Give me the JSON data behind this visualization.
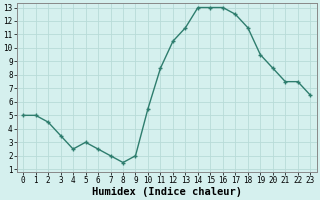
{
  "x": [
    0,
    1,
    2,
    3,
    4,
    5,
    6,
    7,
    8,
    9,
    10,
    11,
    12,
    13,
    14,
    15,
    16,
    17,
    18,
    19,
    20,
    21,
    22,
    23
  ],
  "y": [
    5.0,
    5.0,
    4.5,
    3.5,
    2.5,
    3.0,
    2.5,
    2.0,
    1.5,
    2.0,
    5.5,
    8.5,
    10.5,
    11.5,
    13.0,
    13.0,
    13.0,
    12.5,
    11.5,
    9.5,
    8.5,
    7.5,
    7.5,
    6.5
  ],
  "line_color": "#2e7d6e",
  "marker": "+",
  "marker_size": 3,
  "bg_color": "#d5f0ee",
  "grid_color": "#b8dbd8",
  "xlabel": "Humidex (Indice chaleur)",
  "xlim": [
    -0.5,
    23.5
  ],
  "ylim": [
    0.8,
    13.3
  ],
  "yticks": [
    1,
    2,
    3,
    4,
    5,
    6,
    7,
    8,
    9,
    10,
    11,
    12,
    13
  ],
  "xticks": [
    0,
    1,
    2,
    3,
    4,
    5,
    6,
    7,
    8,
    9,
    10,
    11,
    12,
    13,
    14,
    15,
    16,
    17,
    18,
    19,
    20,
    21,
    22,
    23
  ],
  "tick_label_fontsize": 5.5,
  "xlabel_fontsize": 7.5,
  "line_width": 1.0,
  "spine_color": "#888888"
}
